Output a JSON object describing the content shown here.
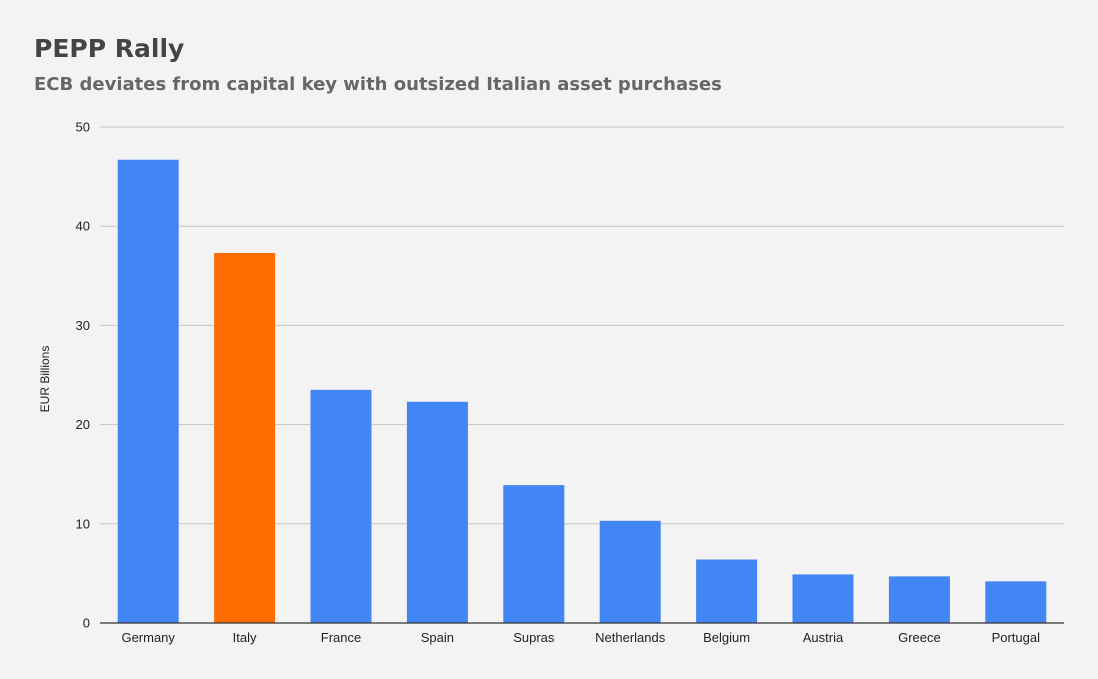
{
  "chart_data": {
    "type": "bar",
    "title": "PEPP Rally",
    "subtitle": "ECB deviates from capital key with outsized Italian asset purchases",
    "xlabel": "",
    "ylabel": "EUR Billions",
    "ylim": [
      0,
      50
    ],
    "yticks": [
      0,
      10,
      20,
      30,
      40,
      50
    ],
    "grid": true,
    "legend": "none",
    "categories": [
      "Germany",
      "Italy",
      "France",
      "Spain",
      "Supras",
      "Netherlands",
      "Belgium",
      "Austria",
      "Greece",
      "Portugal"
    ],
    "values": [
      46.7,
      37.3,
      23.5,
      22.3,
      13.9,
      10.3,
      6.4,
      4.9,
      4.7,
      4.2
    ],
    "bar_colors": [
      "#4285f4",
      "#ff6d01",
      "#4285f4",
      "#4285f4",
      "#4285f4",
      "#4285f4",
      "#4285f4",
      "#4285f4",
      "#4285f4",
      "#4285f4"
    ],
    "gridline_color": "#c6c6c6",
    "axis_color": "#333333"
  }
}
